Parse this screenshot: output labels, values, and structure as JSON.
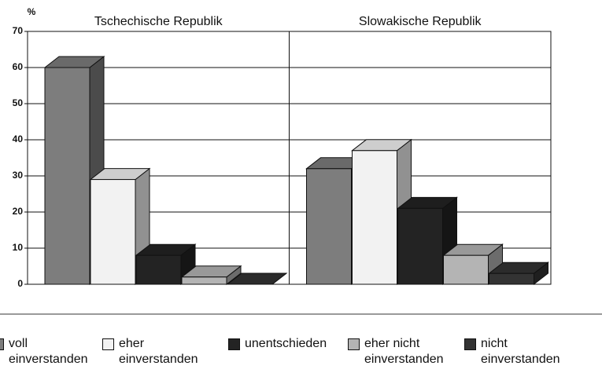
{
  "chart_data": {
    "type": "bar",
    "y_label": "%",
    "categories": [
      "Tschechische Republik",
      "Slowakische Republik"
    ],
    "series": [
      {
        "name": "voll einverstanden",
        "color": "#7d7d7d",
        "values": [
          60,
          32
        ]
      },
      {
        "name": "eher einverstanden",
        "color": "#f2f2f2",
        "values": [
          29,
          37
        ]
      },
      {
        "name": "unentschieden",
        "color": "#232323",
        "values": [
          8,
          21
        ]
      },
      {
        "name": "eher nicht einverstanden",
        "color": "#b4b4b4",
        "values": [
          2,
          8
        ]
      },
      {
        "name": "nicht einverstanden",
        "color": "#333333",
        "values": [
          0,
          3
        ]
      }
    ],
    "ylim": [
      0,
      70
    ],
    "yticks": [
      0,
      10,
      20,
      30,
      40,
      50,
      60,
      70
    ],
    "grid": true,
    "legend": "bottom"
  }
}
